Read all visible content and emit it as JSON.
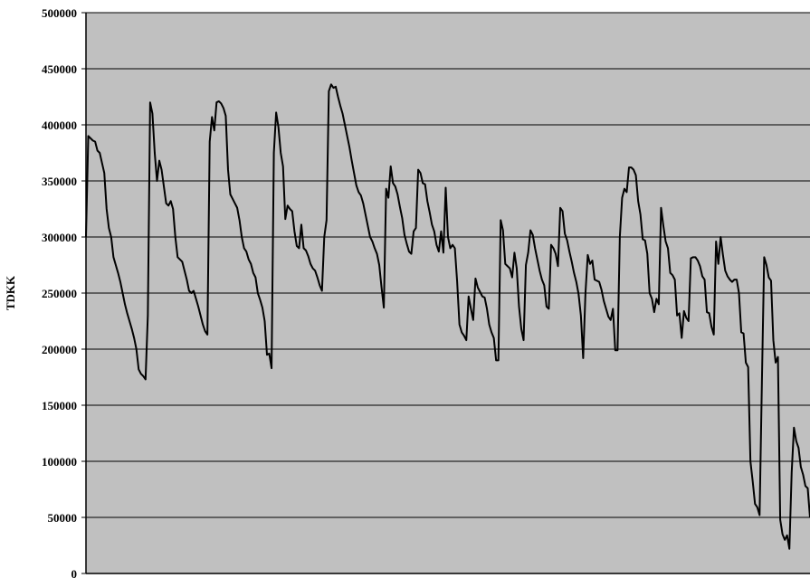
{
  "chart_data": {
    "type": "line",
    "title": "",
    "xlabel": "",
    "ylabel": "TDKK",
    "ylim": [
      0,
      500000
    ],
    "y_ticks": [
      0,
      50000,
      100000,
      150000,
      200000,
      250000,
      300000,
      350000,
      400000,
      450000,
      500000
    ],
    "y_tick_labels": [
      "0",
      "50000",
      "100000",
      "150000",
      "200000",
      "250000",
      "300000",
      "350000",
      "400000",
      "450000",
      "500000"
    ],
    "x_tick_labels": [],
    "grid": "horizontal",
    "legend": "none",
    "colors": {
      "plot_background": "#c0c0c0",
      "line": "#000000",
      "grid": "#000000"
    },
    "series": [
      {
        "values": [
          300000,
          390000,
          388000,
          386000,
          385000,
          377000,
          375000,
          366000,
          357000,
          325000,
          308000,
          300000,
          282000,
          275000,
          268000,
          260000,
          250000,
          240000,
          232000,
          225000,
          218000,
          210000,
          200000,
          182000,
          178000,
          176000,
          173000,
          230000,
          420000,
          410000,
          375000,
          350000,
          368000,
          360000,
          345000,
          330000,
          328000,
          332000,
          325000,
          300000,
          282000,
          280000,
          278000,
          270000,
          262000,
          252000,
          250000,
          252000,
          245000,
          238000,
          230000,
          222000,
          216000,
          213000,
          385000,
          407000,
          395000,
          420000,
          421000,
          419000,
          415000,
          408000,
          360000,
          338000,
          334000,
          330000,
          326000,
          315000,
          300000,
          290000,
          287000,
          280000,
          276000,
          268000,
          264000,
          250000,
          244000,
          237000,
          225000,
          195000,
          196000,
          183000,
          375000,
          411000,
          398000,
          375000,
          363000,
          316000,
          328000,
          325000,
          323000,
          305000,
          292000,
          290000,
          311000,
          290000,
          288000,
          283000,
          276000,
          272000,
          270000,
          264000,
          257000,
          252000,
          300000,
          315000,
          430000,
          436000,
          433000,
          434000,
          425000,
          417000,
          410000,
          400000,
          390000,
          380000,
          368000,
          357000,
          346000,
          340000,
          337000,
          330000,
          320000,
          310000,
          300000,
          296000,
          290000,
          285000,
          275000,
          255000,
          237000,
          343000,
          335000,
          363000,
          348000,
          345000,
          338000,
          327000,
          317000,
          302000,
          294000,
          287000,
          285000,
          305000,
          308000,
          360000,
          357000,
          348000,
          347000,
          332000,
          322000,
          311000,
          305000,
          293000,
          287000,
          305000,
          286000,
          344000,
          300000,
          290000,
          293000,
          290000,
          260000,
          222000,
          215000,
          212000,
          208000,
          247000,
          236000,
          226000,
          263000,
          255000,
          251000,
          247000,
          246000,
          236000,
          222000,
          215000,
          210000,
          190000,
          190000,
          315000,
          306000,
          276000,
          274000,
          272000,
          264000,
          286000,
          272000,
          238000,
          218000,
          208000,
          275000,
          286000,
          306000,
          302000,
          290000,
          280000,
          270000,
          262000,
          257000,
          238000,
          236000,
          293000,
          290000,
          285000,
          274000,
          326000,
          323000,
          303000,
          297000,
          287000,
          278000,
          268000,
          260000,
          249000,
          230000,
          192000,
          250000,
          284000,
          276000,
          279000,
          262000,
          261000,
          260000,
          253000,
          243000,
          236000,
          229000,
          226000,
          236000,
          199000,
          199000,
          300000,
          335000,
          343000,
          340000,
          362000,
          362000,
          360000,
          355000,
          332000,
          320000,
          298000,
          297000,
          285000,
          250000,
          245000,
          233000,
          245000,
          240000,
          326000,
          310000,
          296000,
          290000,
          268000,
          266000,
          262000,
          230000,
          232000,
          210000,
          234000,
          228000,
          225000,
          281000,
          282000,
          282000,
          279000,
          274000,
          265000,
          262000,
          233000,
          232000,
          220000,
          213000,
          296000,
          276000,
          300000,
          284000,
          270000,
          265000,
          262000,
          260000,
          262000,
          262000,
          250000,
          215000,
          214000,
          188000,
          184000,
          100000,
          82000,
          62000,
          59000,
          52000,
          170000,
          282000,
          275000,
          264000,
          261000,
          208000,
          188000,
          193000,
          48000,
          35000,
          30000,
          34000,
          22000,
          90000,
          130000,
          118000,
          112000,
          95000,
          88000,
          78000,
          76000,
          50000
        ]
      }
    ]
  }
}
